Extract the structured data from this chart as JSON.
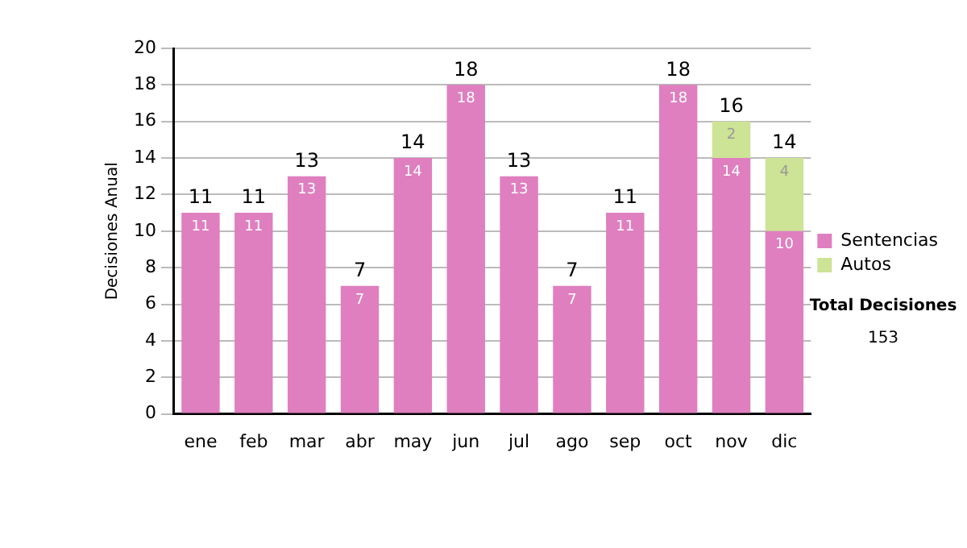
{
  "chart_data": {
    "type": "bar",
    "stacked": true,
    "ylabel": "Decisiones Anual",
    "categories": [
      "ene",
      "feb",
      "mar",
      "abr",
      "may",
      "jun",
      "jul",
      "ago",
      "sep",
      "oct",
      "nov",
      "dic"
    ],
    "series": [
      {
        "name": "Sentencias",
        "color": "#df7fbf",
        "values": [
          11,
          11,
          13,
          7,
          14,
          18,
          13,
          7,
          11,
          18,
          14,
          10
        ],
        "value_labels": [
          "11",
          "11",
          "13",
          "7",
          "14",
          "18",
          "13",
          "7",
          "11",
          "18",
          "14",
          "10"
        ]
      },
      {
        "name": "Autos",
        "color": "#cde396",
        "values": [
          0,
          0,
          0,
          0,
          0,
          0,
          0,
          0,
          0,
          0,
          2,
          4
        ],
        "value_labels": [
          null,
          null,
          null,
          null,
          null,
          null,
          null,
          null,
          null,
          null,
          "2",
          "4"
        ]
      }
    ],
    "totals": [
      "11",
      "11",
      "13",
      "7",
      "14",
      "18",
      "13",
      "7",
      "11",
      "18",
      "16",
      "14"
    ],
    "ylim": [
      0,
      20
    ],
    "yticks": [
      0,
      2,
      4,
      6,
      8,
      10,
      12,
      14,
      16,
      18,
      20
    ],
    "grid": "y",
    "legend": "right",
    "annotations": [
      "Total Decisiones",
      "153"
    ]
  }
}
